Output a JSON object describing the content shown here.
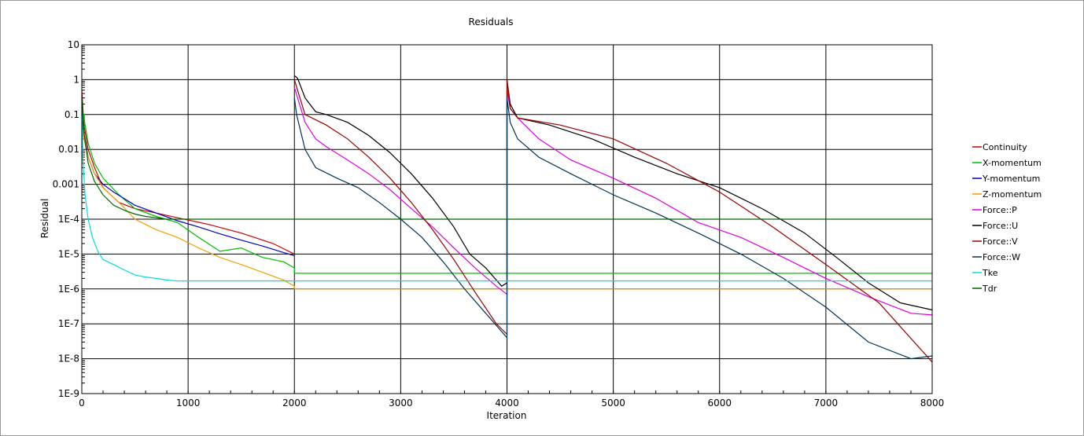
{
  "chart_data": {
    "type": "line",
    "title": "Residuals",
    "xlabel": "Iteration",
    "ylabel": "Residual",
    "xlim": [
      0,
      8000
    ],
    "ylim": [
      1e-09,
      10
    ],
    "yscale": "log",
    "grid": true,
    "legend_position": "right",
    "xticks": [
      0,
      1000,
      2000,
      3000,
      4000,
      5000,
      6000,
      7000,
      8000
    ],
    "xtick_labels": [
      "0",
      "1000",
      "2000",
      "3000",
      "4000",
      "5000",
      "6000",
      "7000",
      "8000"
    ],
    "yticks": [
      1e-09,
      1e-08,
      1e-07,
      1e-06,
      1e-05,
      0.0001,
      0.001,
      0.01,
      0.1,
      1,
      10
    ],
    "ytick_labels": [
      "1E-9",
      "1E-8",
      "1E-7",
      "1E-6",
      "1E-5",
      "1E-4",
      "0.001",
      "0.01",
      "0.1",
      "1",
      "10"
    ],
    "series": [
      {
        "name": "Continuity",
        "color": "#cc0000",
        "x": [
          0,
          20,
          60,
          120,
          200,
          350,
          500,
          700,
          900,
          1200,
          1500,
          1800,
          2000
        ],
        "y": [
          0.5,
          0.05,
          0.01,
          0.003,
          0.0008,
          0.0003,
          0.0002,
          0.00015,
          0.00011,
          7e-05,
          4e-05,
          2e-05,
          1e-05
        ]
      },
      {
        "name": "X-momentum",
        "color": "#00bb00",
        "x": [
          0,
          20,
          60,
          120,
          200,
          350,
          500,
          700,
          900,
          1100,
          1300,
          1500,
          1700,
          1900,
          2000,
          2000,
          8000
        ],
        "y": [
          0.2,
          0.08,
          0.015,
          0.004,
          0.0015,
          0.0005,
          0.0002,
          0.00012,
          8e-05,
          3e-05,
          1.2e-05,
          1.5e-05,
          8e-06,
          6e-06,
          4e-06,
          2.8e-06,
          2.8e-06
        ]
      },
      {
        "name": "Y-momentum",
        "color": "#0000cc",
        "x": [
          0,
          20,
          60,
          120,
          200,
          300,
          500,
          700,
          900,
          1100,
          1300,
          1500,
          1700,
          1900,
          2000
        ],
        "y": [
          0.1,
          0.03,
          0.006,
          0.002,
          0.001,
          0.0006,
          0.00025,
          0.00015,
          9e-05,
          6e-05,
          3.8e-05,
          2.5e-05,
          1.7e-05,
          1.1e-05,
          9e-06
        ]
      },
      {
        "name": "Z-momentum",
        "color": "#f0a000",
        "x": [
          0,
          20,
          60,
          120,
          200,
          350,
          500,
          700,
          900,
          1100,
          1300,
          1500,
          1700,
          1900,
          2000,
          2000,
          8000
        ],
        "y": [
          0.05,
          0.02,
          0.006,
          0.002,
          0.0008,
          0.0003,
          0.0001,
          5e-05,
          3e-05,
          1.5e-05,
          8e-06,
          5e-06,
          3e-06,
          1.8e-06,
          1.2e-06,
          1e-06,
          1e-06
        ]
      },
      {
        "name": "Force::P",
        "color": "#dd00dd",
        "x": [
          2000,
          2030,
          2100,
          2200,
          2300,
          2500,
          2700,
          2900,
          3100,
          3300,
          3500,
          3700,
          3900,
          4000,
          4000,
          4030,
          4100,
          4300,
          4600,
          5000,
          5400,
          5800,
          6200,
          6600,
          7000,
          7400,
          7800,
          8000
        ],
        "y": [
          0.6,
          0.3,
          0.06,
          0.02,
          0.012,
          0.005,
          0.002,
          0.0007,
          0.0002,
          6e-05,
          1.5e-05,
          4e-06,
          1.2e-06,
          7e-07,
          0.5,
          0.15,
          0.08,
          0.02,
          0.005,
          0.0015,
          0.0004,
          8e-05,
          3e-05,
          8e-06,
          2e-06,
          6e-07,
          2e-07,
          1.8e-07
        ]
      },
      {
        "name": "Force::U",
        "color": "#000000",
        "x": [
          2000,
          2030,
          2100,
          2200,
          2300,
          2500,
          2700,
          2900,
          3100,
          3300,
          3500,
          3650,
          3800,
          3950,
          4000,
          4000,
          4030,
          4100,
          4400,
          4800,
          5200,
          5600,
          6000,
          6400,
          6800,
          7100,
          7400,
          7700,
          8000
        ],
        "y": [
          1.3,
          1.1,
          0.3,
          0.12,
          0.1,
          0.06,
          0.025,
          0.008,
          0.002,
          0.0004,
          6e-05,
          1e-05,
          4e-06,
          1.2e-06,
          1.5e-06,
          1.0,
          0.2,
          0.08,
          0.05,
          0.02,
          0.006,
          0.002,
          0.0008,
          0.0002,
          4e-05,
          8e-06,
          1.5e-06,
          4e-07,
          2.5e-07
        ]
      },
      {
        "name": "Force::V",
        "color": "#990000",
        "x": [
          2000,
          2030,
          2100,
          2300,
          2500,
          2700,
          2900,
          3100,
          3300,
          3500,
          3700,
          3900,
          4000,
          4000,
          4030,
          4100,
          4500,
          5000,
          5500,
          6000,
          6500,
          7000,
          7500,
          8000
        ],
        "y": [
          1.0,
          0.5,
          0.1,
          0.05,
          0.02,
          0.006,
          0.0015,
          0.0003,
          5e-05,
          7e-06,
          8e-07,
          1e-07,
          5e-08,
          1.0,
          0.15,
          0.08,
          0.05,
          0.02,
          0.004,
          0.0006,
          6e-05,
          5e-06,
          4e-07,
          8e-09
        ]
      },
      {
        "name": "Force::W",
        "color": "#003355",
        "x": [
          2000,
          2020,
          2100,
          2200,
          2400,
          2600,
          2800,
          3000,
          3200,
          3400,
          3600,
          3800,
          4000,
          4000,
          4030,
          4100,
          4300,
          4600,
          5000,
          5400,
          5800,
          6200,
          6600,
          7000,
          7400,
          7800,
          8000
        ],
        "y": [
          0.3,
          0.1,
          0.01,
          0.003,
          0.0015,
          0.0008,
          0.0003,
          0.0001,
          3e-05,
          6e-06,
          1e-06,
          2e-07,
          4e-08,
          0.3,
          0.06,
          0.02,
          0.006,
          0.002,
          0.0005,
          0.00015,
          4e-05,
          1e-05,
          2e-06,
          3e-07,
          3e-08,
          1e-08,
          1.2e-08
        ]
      },
      {
        "name": "Tke",
        "color": "#00dddd",
        "x": [
          0,
          10,
          30,
          60,
          100,
          150,
          200,
          300,
          400,
          500,
          600,
          700,
          800,
          900,
          1000,
          8000
        ],
        "y": [
          0.3,
          0.005,
          0.0005,
          0.0001,
          3e-05,
          1.2e-05,
          7e-06,
          5e-06,
          3.5e-06,
          2.5e-06,
          2.2e-06,
          2e-06,
          1.8e-06,
          1.7e-06,
          1.7e-06,
          1.7e-06
        ]
      },
      {
        "name": "Tdr",
        "color": "#006600",
        "x": [
          0,
          20,
          60,
          120,
          200,
          300,
          400,
          500,
          600,
          700,
          800,
          1000,
          8000
        ],
        "y": [
          0.3,
          0.03,
          0.004,
          0.0012,
          0.0005,
          0.00025,
          0.00018,
          0.00014,
          0.00012,
          0.00011,
          0.0001,
          0.0001,
          0.0001
        ]
      }
    ]
  }
}
